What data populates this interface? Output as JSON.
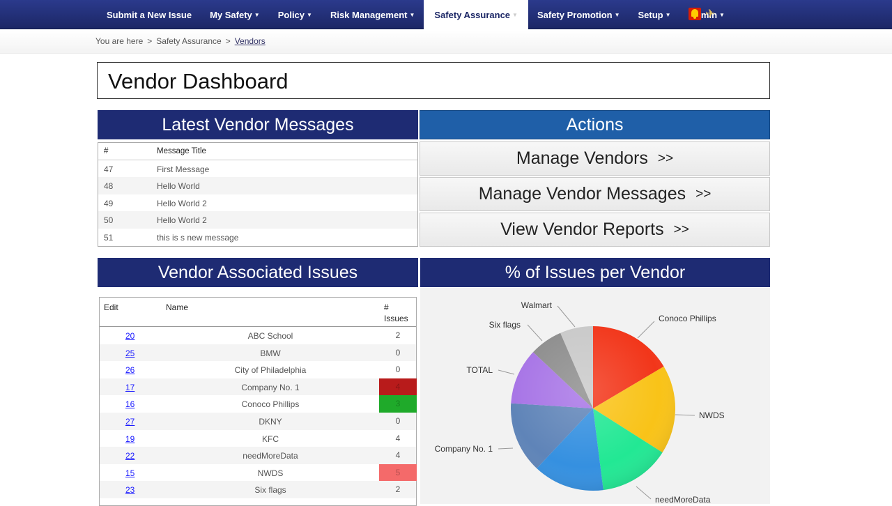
{
  "nav": {
    "items": [
      {
        "label": "Submit a New Issue",
        "dropdown": false
      },
      {
        "label": "My Safety",
        "dropdown": true
      },
      {
        "label": "Policy",
        "dropdown": true
      },
      {
        "label": "Risk Management",
        "dropdown": true
      },
      {
        "label": "Safety Assurance",
        "dropdown": true,
        "active": true
      },
      {
        "label": "Safety Promotion",
        "dropdown": true
      },
      {
        "label": "Setup",
        "dropdown": true
      },
      {
        "label": "Admin",
        "dropdown": true
      }
    ],
    "caret": "▼",
    "icons": [
      "alarm-bell-icon",
      "airplane-icon"
    ],
    "plane_glyph": "✈"
  },
  "breadcrumb": {
    "prefix": "You are here",
    "separator": ">",
    "section": "Safety Assurance",
    "current": "Vendors"
  },
  "page_title": "Vendor Dashboard",
  "messages": {
    "title": "Latest Vendor Messages",
    "columns": [
      "#",
      "Message Title"
    ],
    "rows": [
      {
        "id": "47",
        "title": "First Message"
      },
      {
        "id": "48",
        "title": "Hello World"
      },
      {
        "id": "49",
        "title": "Hello World 2"
      },
      {
        "id": "50",
        "title": "Hello World 2"
      },
      {
        "id": "51",
        "title": "this is s new message"
      }
    ]
  },
  "actions": {
    "title": "Actions",
    "arrows": ">>",
    "buttons": [
      "Manage Vendors",
      "Manage Vendor Messages",
      "View Vendor Reports"
    ]
  },
  "issues": {
    "title": "Vendor Associated Issues",
    "columns": {
      "edit": "Edit",
      "name": "Name",
      "count_line1": "#",
      "count_line2": "Issues"
    },
    "rows": [
      {
        "edit": "20",
        "name": "ABC School",
        "count": "2",
        "highlight": ""
      },
      {
        "edit": "25",
        "name": "BMW",
        "count": "0",
        "highlight": ""
      },
      {
        "edit": "26",
        "name": "City of Philadelphia",
        "count": "0",
        "highlight": ""
      },
      {
        "edit": "17",
        "name": "Company No. 1",
        "count": "4",
        "highlight": "#b81b1b"
      },
      {
        "edit": "16",
        "name": "Conoco Phillips",
        "count": "3",
        "highlight": "#1faa2a"
      },
      {
        "edit": "27",
        "name": "DKNY",
        "count": "0",
        "highlight": ""
      },
      {
        "edit": "19",
        "name": "KFC",
        "count": "4",
        "highlight": ""
      },
      {
        "edit": "22",
        "name": "needMoreData",
        "count": "4",
        "highlight": ""
      },
      {
        "edit": "15",
        "name": "NWDS",
        "count": "5",
        "highlight": "#f46a6a"
      },
      {
        "edit": "23",
        "name": "Six flags",
        "count": "2",
        "highlight": ""
      }
    ]
  },
  "chart_data": {
    "type": "pie",
    "title": "% of Issues per Vendor",
    "labels": [
      "Conoco Phillips",
      "NWDS",
      "needMoreData",
      "",
      "Company No. 1",
      "TOTAL",
      "Six flags",
      "Walmart"
    ],
    "values": [
      16.5,
      17.5,
      14,
      14,
      14,
      11,
      6.5,
      6.5
    ],
    "colors": [
      "#f2361a",
      "#f9c318",
      "#22e894",
      "#3590e0",
      "#5f84b8",
      "#a774e6",
      "#8d8d8d",
      "#c9c9c9"
    ]
  }
}
